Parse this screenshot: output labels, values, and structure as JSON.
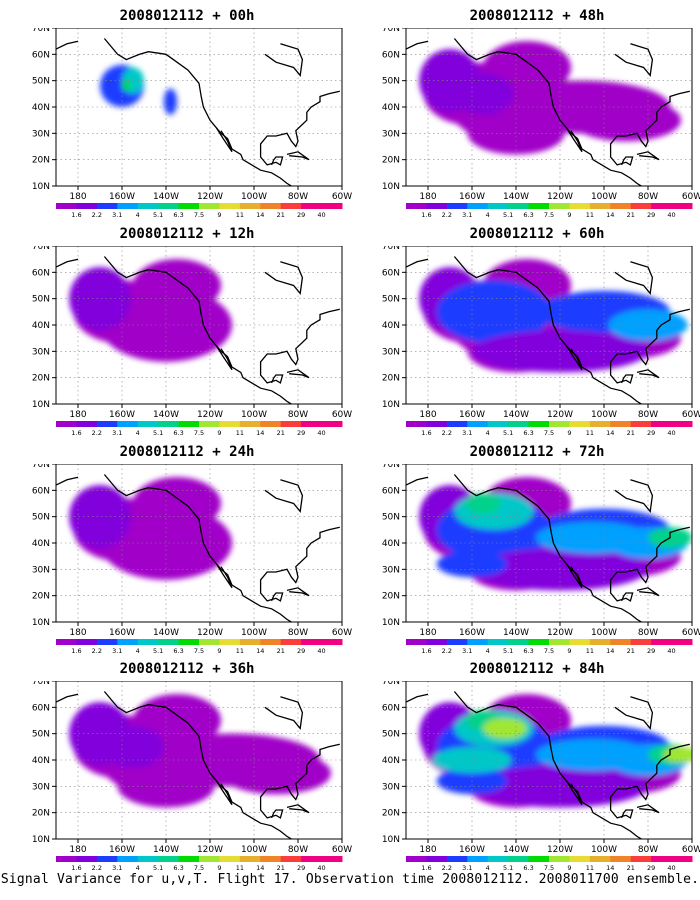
{
  "panels": [
    {
      "title": "2008012112 + 00h",
      "level": 0
    },
    {
      "title": "2008012112 + 48h",
      "level": 2
    },
    {
      "title": "2008012112 + 12h",
      "level": 1
    },
    {
      "title": "2008012112 + 60h",
      "level": 3
    },
    {
      "title": "2008012112 + 24h",
      "level": 1
    },
    {
      "title": "2008012112 + 72h",
      "level": 4
    },
    {
      "title": "2008012112 + 36h",
      "level": 2
    },
    {
      "title": "2008012112 + 84h",
      "level": 5
    }
  ],
  "lat_labels": [
    "70N",
    "60N",
    "50N",
    "40N",
    "30N",
    "20N",
    "10N"
  ],
  "lon_labels": [
    "180",
    "160W",
    "140W",
    "120W",
    "100W",
    "80W",
    "60W"
  ],
  "colorbar_labels": [
    "1.6",
    "2.2",
    "3.1",
    "4",
    "5.1",
    "6.3",
    "7.5",
    "9",
    "11",
    "14",
    "21",
    "29",
    "40"
  ],
  "colorbar_colors": [
    "#a000c8",
    "#8200dc",
    "#1e3cff",
    "#00a0ff",
    "#00c8c8",
    "#00d28c",
    "#00dc00",
    "#a0e632",
    "#e6dc32",
    "#e6af2d",
    "#f08228",
    "#fa3c3c",
    "#f00082"
  ],
  "footer": "Signal Variance for u,v,T. Flight 17. Observation time 2008012112. 2008011700 ensemble."
}
